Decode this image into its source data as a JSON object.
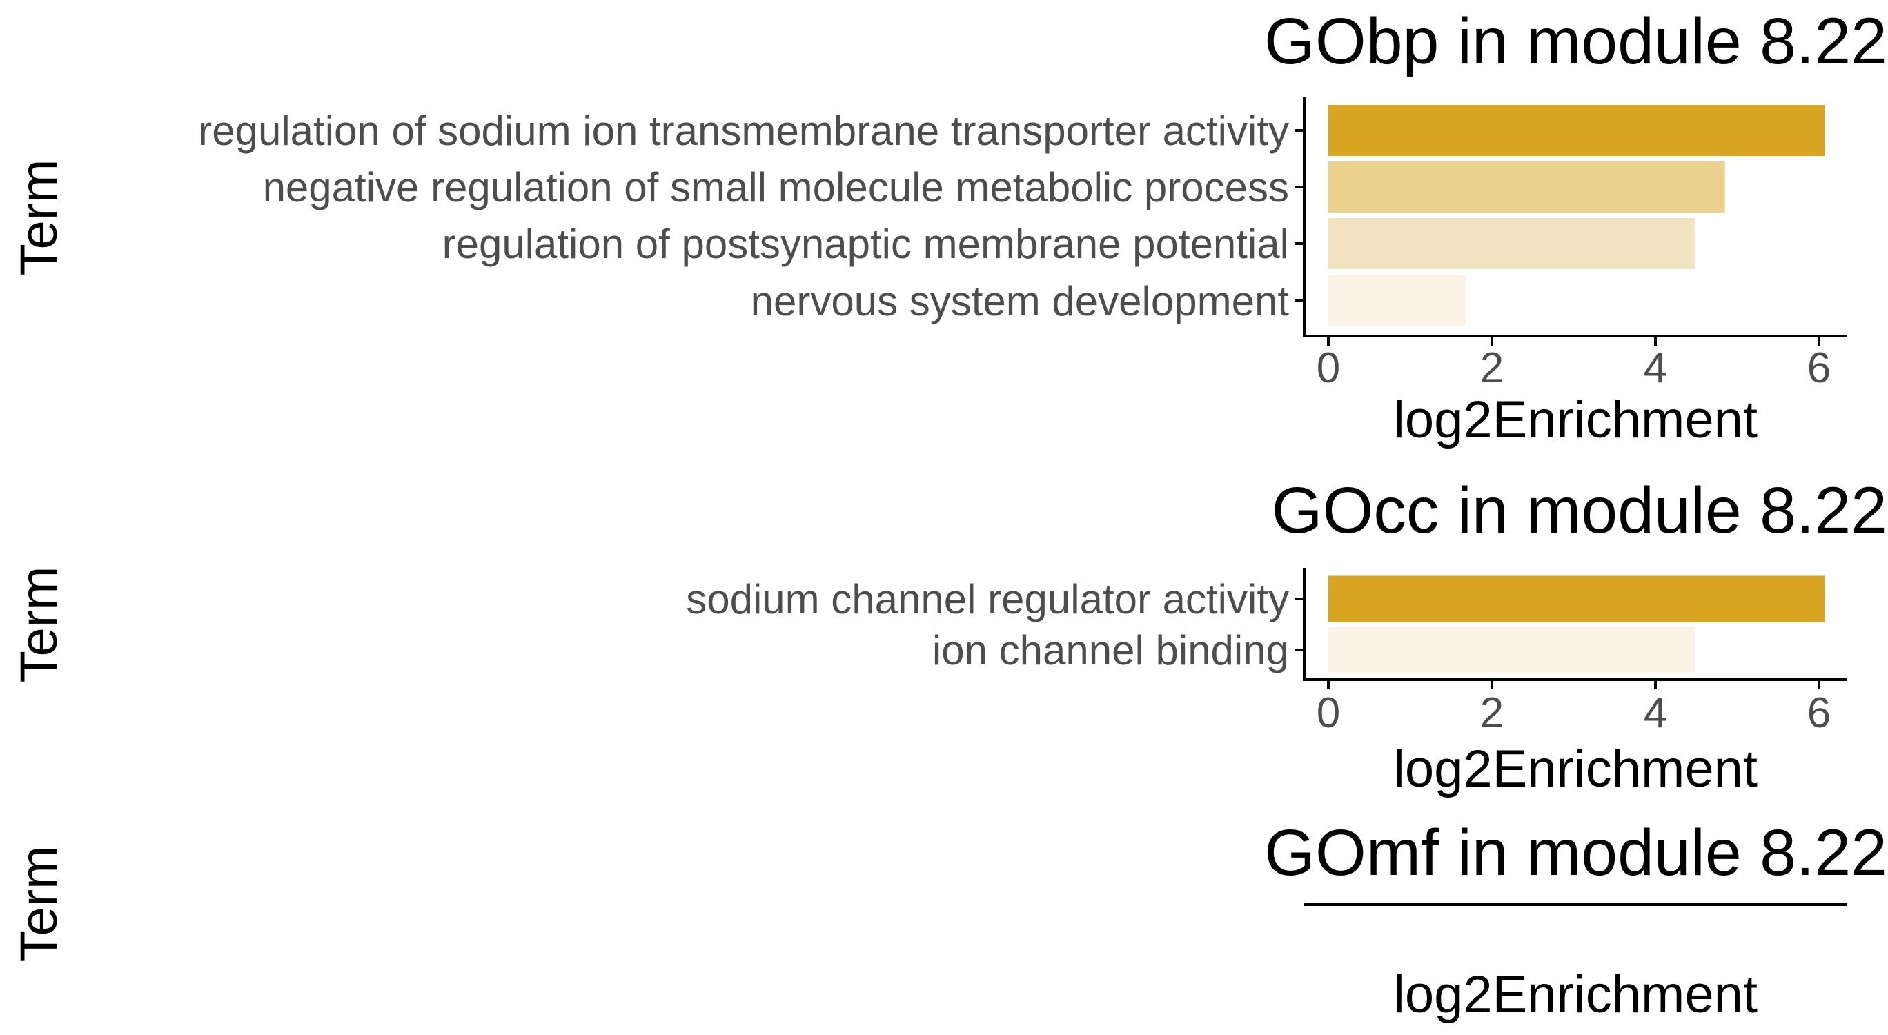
{
  "chart_data": [
    {
      "type": "bar",
      "orientation": "horizontal",
      "title": "GObp in module 8.22",
      "xlabel": "log2Enrichment",
      "ylabel": "Term",
      "xlim": [
        0,
        6.3
      ],
      "xticks": [
        0,
        2,
        4,
        6
      ],
      "categories": [
        "regulation of sodium ion transmembrane transporter activity",
        "negative regulation of small molecule metabolic process",
        "regulation of postsynaptic membrane potential",
        "nervous system development"
      ],
      "values": [
        6.07,
        4.85,
        4.48,
        1.68
      ],
      "colors": [
        "#daa520",
        "#ecd18e",
        "#f2e3c0",
        "#faf3e6"
      ],
      "grid": false,
      "legend": "none"
    },
    {
      "type": "bar",
      "orientation": "horizontal",
      "title": "GOcc in module 8.22",
      "xlabel": "log2Enrichment",
      "ylabel": "Term",
      "xlim": [
        0,
        6.3
      ],
      "xticks": [
        0,
        2,
        4,
        6
      ],
      "categories": [
        "sodium channel regulator activity",
        "ion channel binding"
      ],
      "values": [
        6.07,
        4.48
      ],
      "colors": [
        "#daa520",
        "#faf3e6"
      ],
      "grid": false,
      "legend": "none"
    },
    {
      "type": "bar",
      "orientation": "horizontal",
      "title": "GOmf in module 8.22",
      "xlabel": "log2Enrichment",
      "ylabel": "Term",
      "categories": [],
      "values": [],
      "grid": false,
      "legend": "none"
    }
  ]
}
